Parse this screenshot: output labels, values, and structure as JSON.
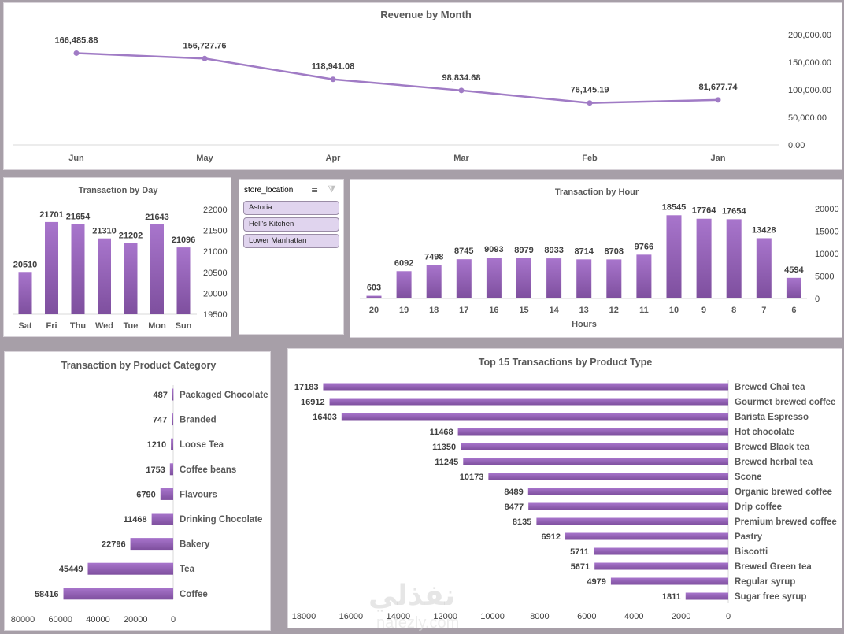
{
  "colors": {
    "background": "#a79fa8",
    "bar_top": "#a875cc",
    "bar_bottom": "#7e4f9e",
    "line": "#a07bc5",
    "slicer_item": "#e0d4ee"
  },
  "slicer": {
    "field": "store_location",
    "multiselect_icon": "multi-select-icon",
    "clear_filter_icon": "clear-filter-icon",
    "items": [
      "Astoria",
      "Hell's Kitchen",
      "Lower Manhattan"
    ]
  },
  "watermark": {
    "text": "نفذلي",
    "url_text": "nafezly.com"
  },
  "chart_data": [
    {
      "id": "revenue_by_month",
      "type": "line",
      "title": "Revenue by Month",
      "categories": [
        "Jun",
        "May",
        "Apr",
        "Mar",
        "Feb",
        "Jan"
      ],
      "values": [
        166485.88,
        156727.76,
        118941.08,
        98834.68,
        76145.19,
        81677.74
      ],
      "value_labels": [
        "166,485.88",
        "156,727.76",
        "118,941.08",
        "98,834.68",
        "76,145.19",
        "81,677.74"
      ],
      "ylim": [
        0,
        200000
      ],
      "yticks": [
        "0.00",
        "50,000.00",
        "100,000.00",
        "150,000.00",
        "200,000.00"
      ],
      "ytick_values": [
        0,
        50000,
        100000,
        150000,
        200000
      ],
      "yaxis_side": "right",
      "xlabel": "",
      "ylabel": "",
      "grid": false,
      "legend": "none"
    },
    {
      "id": "transaction_by_day",
      "type": "bar",
      "title": "Transaction by Day",
      "categories": [
        "Sat",
        "Fri",
        "Thu",
        "Wed",
        "Tue",
        "Mon",
        "Sun"
      ],
      "values": [
        20510,
        21701,
        21654,
        21310,
        21202,
        21643,
        21096
      ],
      "ylim": [
        19500,
        22000
      ],
      "yticks": [
        "19500",
        "20000",
        "20500",
        "21000",
        "21500",
        "22000"
      ],
      "ytick_values": [
        19500,
        20000,
        20500,
        21000,
        21500,
        22000
      ],
      "yaxis_side": "right",
      "xlabel": "",
      "ylabel": "",
      "grid": false,
      "legend": "none"
    },
    {
      "id": "transaction_by_hour",
      "type": "bar",
      "title": "Transaction by Hour",
      "categories": [
        "20",
        "19",
        "18",
        "17",
        "16",
        "15",
        "14",
        "13",
        "12",
        "11",
        "10",
        "9",
        "8",
        "7",
        "6"
      ],
      "values": [
        603,
        6092,
        7498,
        8745,
        9093,
        8979,
        8933,
        8714,
        8708,
        9766,
        18545,
        17764,
        17654,
        13428,
        4594
      ],
      "ylim": [
        0,
        20000
      ],
      "yticks": [
        "0",
        "5000",
        "10000",
        "15000",
        "20000"
      ],
      "ytick_values": [
        0,
        5000,
        10000,
        15000,
        20000
      ],
      "yaxis_side": "right",
      "xlabel": "Hours",
      "ylabel": "",
      "grid": false,
      "legend": "none"
    },
    {
      "id": "transaction_by_product_category",
      "type": "bar",
      "orientation": "horizontal",
      "direction": "right-to-left",
      "title": "Transaction by Product Category",
      "categories": [
        "Packaged Chocolate",
        "Branded",
        "Loose Tea",
        "Coffee beans",
        "Flavours",
        "Drinking Chocolate",
        "Bakery",
        "Tea",
        "Coffee"
      ],
      "values": [
        487,
        747,
        1210,
        1753,
        6790,
        11468,
        22796,
        45449,
        58416
      ],
      "xlim": [
        0,
        80000
      ],
      "xticks": [
        "80000",
        "60000",
        "40000",
        "20000",
        "0"
      ],
      "xtick_values": [
        80000,
        60000,
        40000,
        20000,
        0
      ],
      "xlabel": "",
      "ylabel": "",
      "grid": false,
      "legend": "none"
    },
    {
      "id": "top15_transactions_by_product_type",
      "type": "bar",
      "orientation": "horizontal",
      "direction": "right-to-left",
      "title": "Top 15 Transactions by Product Type",
      "categories": [
        "Brewed Chai tea",
        "Gourmet brewed coffee",
        "Barista Espresso",
        "Hot chocolate",
        "Brewed Black tea",
        "Brewed herbal tea",
        "Scone",
        "Organic brewed coffee",
        "Drip coffee",
        "Premium brewed coffee",
        "Pastry",
        "Biscotti",
        "Brewed Green tea",
        "Regular syrup",
        "Sugar free syrup"
      ],
      "values": [
        17183,
        16912,
        16403,
        11468,
        11350,
        11245,
        10173,
        8489,
        8477,
        8135,
        6912,
        5711,
        5671,
        4979,
        1811
      ],
      "xlim": [
        0,
        18000
      ],
      "xticks": [
        "18000",
        "16000",
        "14000",
        "12000",
        "10000",
        "8000",
        "6000",
        "4000",
        "2000",
        "0"
      ],
      "xtick_values": [
        18000,
        16000,
        14000,
        12000,
        10000,
        8000,
        6000,
        4000,
        2000,
        0
      ],
      "xlabel": "",
      "ylabel": "",
      "grid": false,
      "legend": "none"
    }
  ]
}
